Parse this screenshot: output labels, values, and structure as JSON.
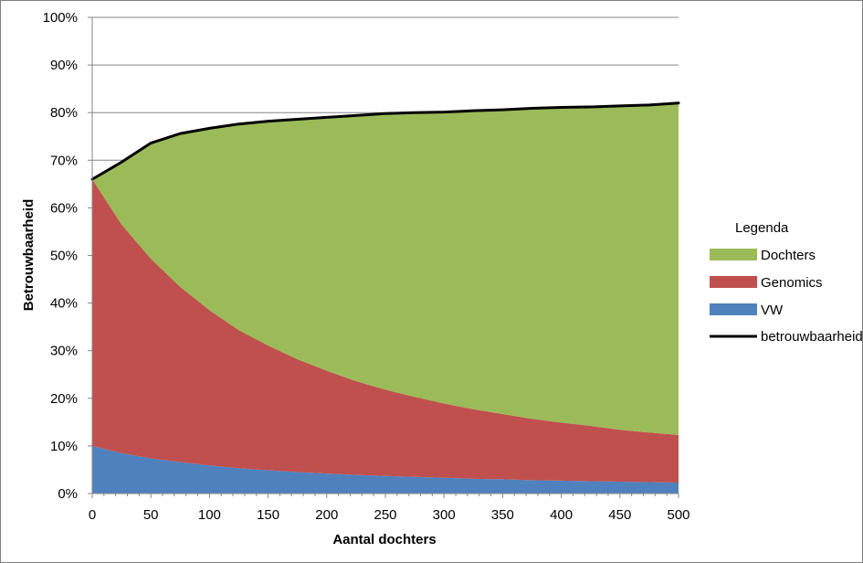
{
  "chart_data": {
    "type": "area",
    "title": "",
    "xlabel": "Aantal dochters",
    "ylabel": "Betrouwbaarheid",
    "x_ticks": [
      "0",
      "50",
      "100",
      "150",
      "200",
      "250",
      "300",
      "350",
      "400",
      "450",
      "500"
    ],
    "y_ticks": [
      "0%",
      "10%",
      "20%",
      "30%",
      "40%",
      "50%",
      "60%",
      "70%",
      "80%",
      "90%",
      "100%"
    ],
    "xlim": [
      0,
      500
    ],
    "ylim": [
      0,
      1
    ],
    "grid": "horizontal",
    "stacked": true,
    "legend_position": "right",
    "x": [
      0,
      25,
      50,
      75,
      100,
      125,
      150,
      175,
      200,
      225,
      250,
      275,
      300,
      325,
      350,
      375,
      400,
      425,
      450,
      475,
      500
    ],
    "series": [
      {
        "name": "VW",
        "color": "#4f81bd",
        "kind": "area",
        "values": [
          0.1,
          0.085,
          0.074,
          0.066,
          0.059,
          0.053,
          0.049,
          0.045,
          0.042,
          0.039,
          0.037,
          0.035,
          0.033,
          0.031,
          0.03,
          0.028,
          0.027,
          0.026,
          0.025,
          0.024,
          0.023
        ]
      },
      {
        "name": "Genomics",
        "color": "#c0504d",
        "kind": "area",
        "values": [
          0.56,
          0.48,
          0.419,
          0.368,
          0.326,
          0.29,
          0.262,
          0.237,
          0.216,
          0.197,
          0.181,
          0.168,
          0.156,
          0.146,
          0.137,
          0.129,
          0.122,
          0.116,
          0.109,
          0.104,
          0.1
        ]
      },
      {
        "name": "Dochters",
        "color": "#9bbb59",
        "kind": "area",
        "values": [
          0.0,
          0.131,
          0.243,
          0.322,
          0.382,
          0.433,
          0.471,
          0.504,
          0.532,
          0.558,
          0.58,
          0.597,
          0.612,
          0.627,
          0.639,
          0.652,
          0.662,
          0.67,
          0.68,
          0.688,
          0.697
        ]
      },
      {
        "name": "betrouwbaarheid",
        "color": "#000000",
        "kind": "line",
        "values": [
          0.66,
          0.696,
          0.736,
          0.756,
          0.767,
          0.776,
          0.782,
          0.786,
          0.79,
          0.794,
          0.798,
          0.8,
          0.801,
          0.804,
          0.806,
          0.809,
          0.811,
          0.812,
          0.814,
          0.816,
          0.82
        ]
      }
    ]
  },
  "legend": {
    "title": "Legenda",
    "items": [
      "Dochters",
      "Genomics",
      "VW",
      "betrouwbaarheid"
    ]
  }
}
